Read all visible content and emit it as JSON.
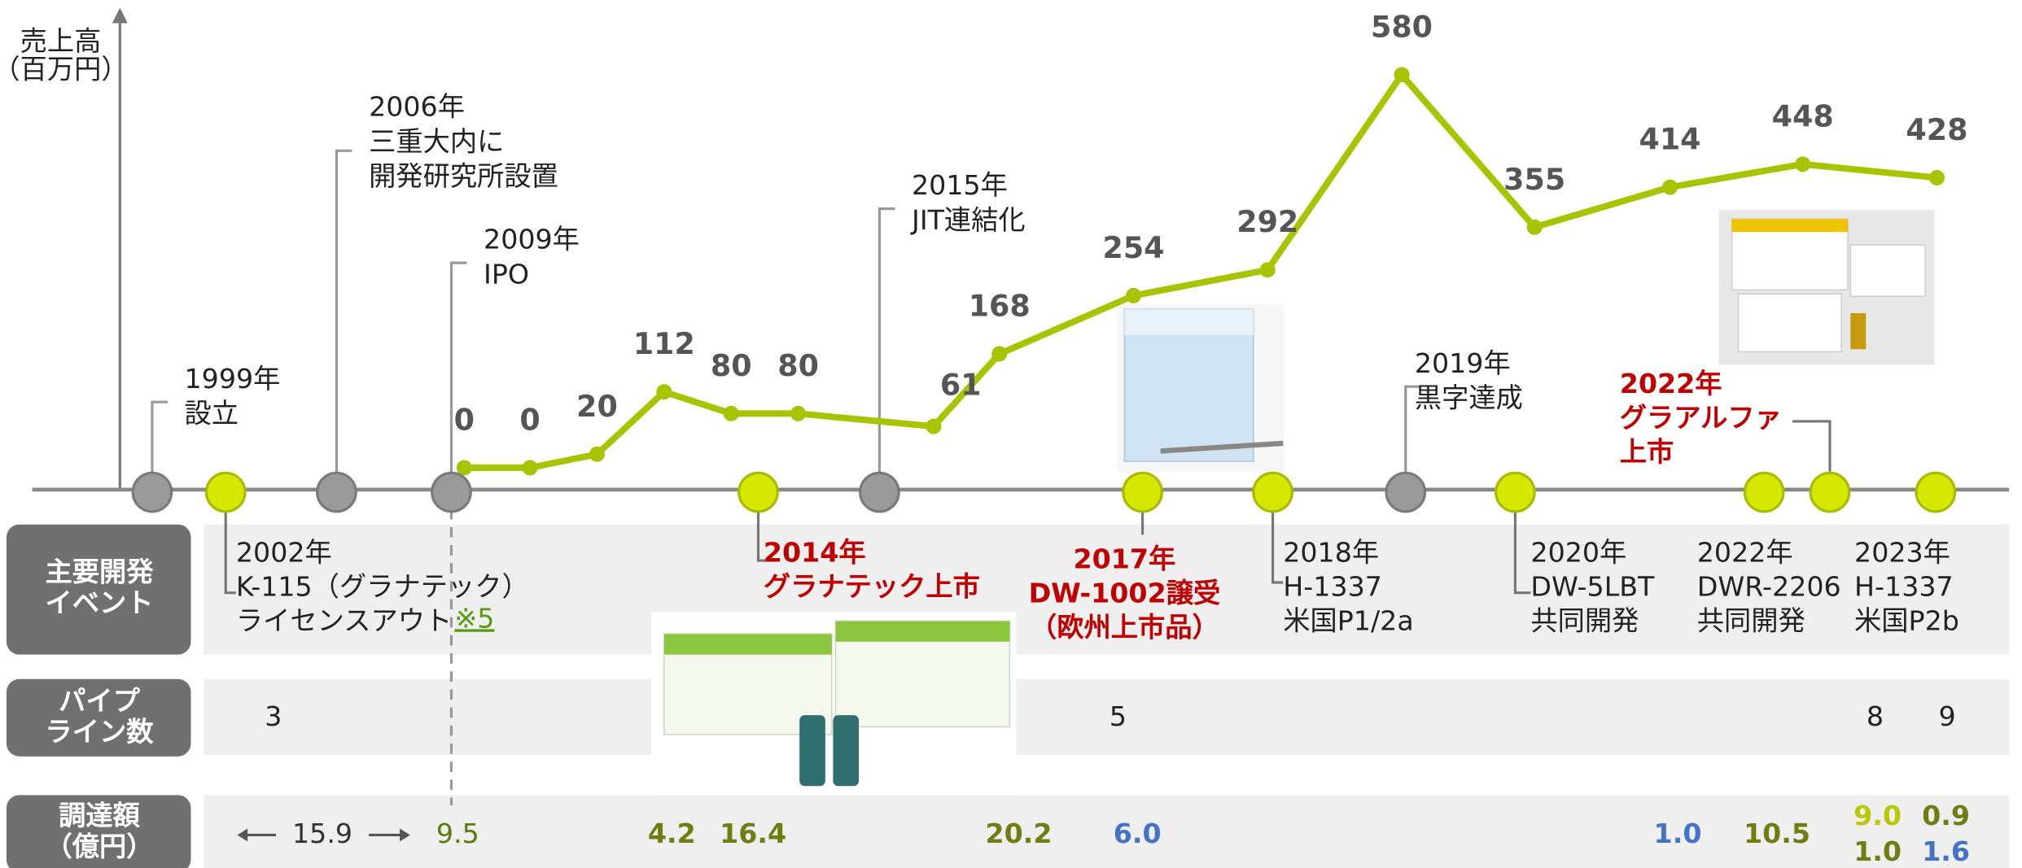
{
  "chart_data": {
    "type": "line",
    "y_label": [
      "売上高",
      "（百万円）"
    ],
    "values": [
      0,
      0,
      20,
      112,
      80,
      80,
      61,
      168,
      254,
      292,
      580,
      355,
      414,
      448,
      428
    ],
    "color": "#a8c400",
    "ylim": [
      0,
      580
    ]
  },
  "milestones": [
    {
      "lines": [
        "1999年",
        "設立"
      ]
    },
    {
      "lines": [
        "2006年",
        "三重大内に",
        "開発研究所設置"
      ]
    },
    {
      "lines": [
        "2009年",
        "IPO"
      ]
    },
    {
      "lines": [
        "2015年",
        "JIT連結化"
      ]
    },
    {
      "lines": [
        "2019年",
        "黒字達成"
      ]
    }
  ],
  "events": [
    {
      "lines": [
        "2002年",
        "K-115（グラナテック）",
        "ライセンスアウト"
      ],
      "note": "※5",
      "highlight": false
    },
    {
      "lines": [
        "2014年",
        "グラナテック上市"
      ],
      "highlight": true
    },
    {
      "lines": [
        "2017年",
        "DW-1002譲受",
        "（欧州上市品）"
      ],
      "highlight": true
    },
    {
      "lines": [
        "2018年",
        "H-1337",
        "米国P1/2a"
      ],
      "highlight": false
    },
    {
      "lines": [
        "2020年",
        "DW-5LBT",
        "共同開発"
      ],
      "highlight": false
    },
    {
      "lines": [
        "2022年",
        "DWR-2206",
        "共同開発"
      ],
      "highlight": false
    },
    {
      "lines": [
        "2022年",
        "グラアルファ",
        "上市"
      ],
      "highlight": true
    },
    {
      "lines": [
        "2023年",
        "H-1337",
        "米国P2b"
      ],
      "highlight": false
    }
  ],
  "table": {
    "rows": [
      {
        "header": [
          "主要開発",
          "イベント"
        ]
      },
      {
        "header": [
          "パイプ",
          "ライン数"
        ],
        "cells": [
          {
            "text": "3"
          },
          {
            "text": "5"
          },
          {
            "text": "8"
          },
          {
            "text": "9"
          }
        ]
      },
      {
        "header": [
          "調達額",
          "（億円）"
        ],
        "cells": [
          {
            "text": "15.9",
            "color": "#333333",
            "bold": false
          },
          {
            "text": "9.5",
            "color": "#5a7a10",
            "bold": false
          },
          {
            "text": "4.2",
            "color": "#6f7d12",
            "bold": true
          },
          {
            "text": "16.4",
            "color": "#6f7d12",
            "bold": true
          },
          {
            "text": "20.2",
            "color": "#6f7d12",
            "bold": true
          },
          {
            "text": "6.0",
            "color": "#4472c4",
            "bold": true
          },
          {
            "text": "1.0",
            "color": "#4472c4",
            "bold": true
          },
          {
            "text": "10.5",
            "color": "#6f7d12",
            "bold": true
          },
          {
            "text": "9.0",
            "color": "#b9c800",
            "bold": true
          },
          {
            "text": "0.9",
            "color": "#6f7d12",
            "bold": true
          },
          {
            "text": "1.0",
            "color": "#6f7d12",
            "bold": true
          },
          {
            "text": "1.6",
            "color": "#4472c4",
            "bold": true
          }
        ]
      }
    ]
  }
}
